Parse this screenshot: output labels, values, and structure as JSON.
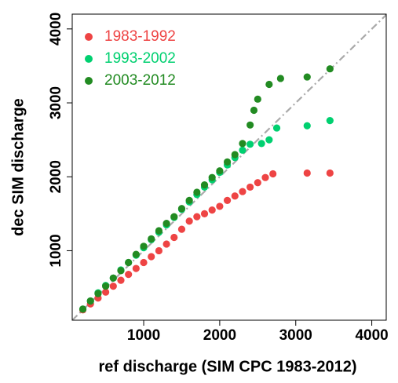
{
  "chart_data": {
    "type": "scatter",
    "x_label": "ref discharge (SIM CPC 1983-2012)",
    "y_label": "dec SIM discharge",
    "xlim": [
      60,
      4190
    ],
    "ylim": [
      60,
      4200
    ],
    "xticks": [
      1000,
      2000,
      3000,
      4000
    ],
    "yticks": [
      1000,
      2000,
      3000,
      4000
    ],
    "reference_line": "y=x",
    "series": [
      {
        "name": "1983-1992",
        "color": "#ee4444",
        "x": [
          200,
          300,
          400,
          500,
          600,
          700,
          800,
          900,
          1000,
          1100,
          1200,
          1300,
          1400,
          1500,
          1600,
          1700,
          1800,
          1900,
          2000,
          2100,
          2200,
          2300,
          2400,
          2500,
          2600,
          2700,
          3150,
          3450
        ],
        "values": [
          200,
          280,
          360,
          440,
          520,
          600,
          680,
          760,
          840,
          920,
          1000,
          1090,
          1180,
          1290,
          1400,
          1460,
          1500,
          1550,
          1600,
          1680,
          1740,
          1800,
          1860,
          1920,
          1990,
          2040,
          2050,
          2050
        ]
      },
      {
        "name": "1993-2002",
        "color": "#00d070",
        "x": [
          200,
          300,
          400,
          500,
          600,
          700,
          800,
          900,
          1000,
          1100,
          1200,
          1300,
          1400,
          1500,
          1600,
          1700,
          1800,
          1900,
          2000,
          2100,
          2200,
          2300,
          2400,
          2550,
          2650,
          2750,
          3150,
          3450
        ],
        "values": [
          210,
          320,
          430,
          530,
          630,
          740,
          840,
          940,
          1040,
          1150,
          1250,
          1350,
          1450,
          1560,
          1660,
          1760,
          1860,
          1960,
          2060,
          2160,
          2260,
          2360,
          2440,
          2450,
          2500,
          2660,
          2690,
          2760
        ]
      },
      {
        "name": "2003-2012",
        "color": "#228b22",
        "x": [
          200,
          300,
          400,
          500,
          600,
          700,
          800,
          900,
          1000,
          1100,
          1200,
          1300,
          1400,
          1500,
          1600,
          1700,
          1800,
          1900,
          2000,
          2100,
          2200,
          2300,
          2400,
          2450,
          2500,
          2650,
          2800,
          3150,
          3450
        ],
        "values": [
          210,
          320,
          420,
          520,
          630,
          730,
          840,
          950,
          1060,
          1160,
          1270,
          1370,
          1460,
          1570,
          1680,
          1790,
          1890,
          1990,
          2080,
          2200,
          2300,
          2450,
          2700,
          2900,
          3050,
          3250,
          3330,
          3350,
          3460
        ]
      }
    ]
  }
}
